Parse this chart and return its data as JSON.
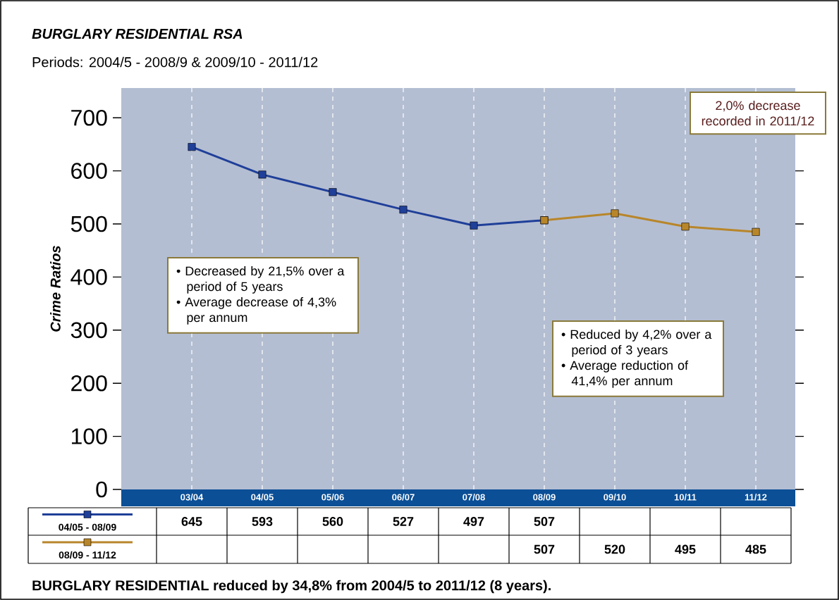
{
  "chart_data": {
    "type": "line",
    "title": "BURGLARY RESIDENTIAL  RSA",
    "subtitle": "Periods: 2004/5 - 2008/9 & 2009/10 - 2011/12",
    "ylabel": "Crime Ratios",
    "categories": [
      "03/04",
      "04/05",
      "05/06",
      "06/07",
      "07/08",
      "08/09",
      "09/10",
      "10/11",
      "11/12"
    ],
    "series": [
      {
        "name": "04/05 - 08/09",
        "color": "#1f3f99",
        "values": [
          645,
          593,
          560,
          527,
          497,
          507,
          null,
          null,
          null
        ]
      },
      {
        "name": "08/09 - 11/12",
        "color": "#b8862a",
        "values": [
          null,
          null,
          null,
          null,
          null,
          507,
          520,
          495,
          485
        ]
      }
    ],
    "ylim": [
      0,
      756
    ],
    "yticks": [
      0,
      100,
      200,
      300,
      400,
      500,
      600,
      700
    ],
    "grid": "x",
    "marker": "square",
    "line_style": "solid",
    "legend": "bottom",
    "data_labels": true,
    "annotations": [
      "• Decreased by 21,5% over a period of 5 years",
      "• Average decrease of 4,3% per annum",
      "• Reduced by 4,2% over a period of 3 years",
      "• Average reduction of 41,4% per annum",
      "2,0% decrease recorded in 2011/12",
      "BURGLARY RESIDENTIAL  reduced by 34,8% from 2004/5 to 2011/12 (8 years)."
    ]
  }
}
